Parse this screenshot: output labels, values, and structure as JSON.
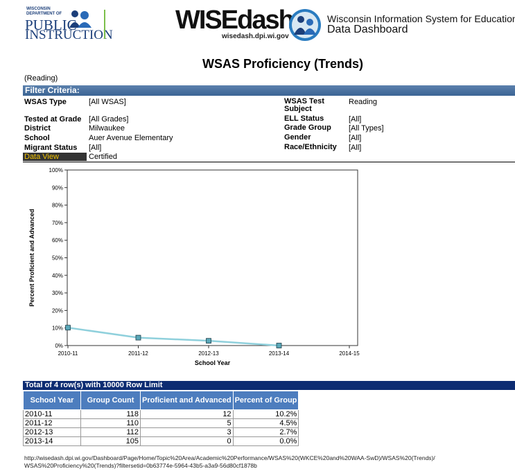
{
  "header": {
    "dpi_small": "WISCONSIN DEPARTMENT OF",
    "dpi_line1": "PUBLIC",
    "dpi_line2": "INSTRUCTION",
    "brand": "WISEdash",
    "brand_url": "wisedash.dpi.wi.gov",
    "tagline1": "Wisconsin Information System for Education",
    "tagline2": "Data Dashboard"
  },
  "title": "WSAS Proficiency (Trends)",
  "subtitle": "(Reading)",
  "filter_title": "Filter Criteria:",
  "filters": {
    "left": [
      {
        "label": "WSAS Type",
        "value": "[All WSAS]"
      },
      {
        "label": "Tested at Grade",
        "value": "[All Grades]"
      },
      {
        "label": "District",
        "value": "Milwaukee"
      },
      {
        "label": "School",
        "value": "Auer Avenue Elementary"
      },
      {
        "label": "Migrant Status",
        "value": "[All]"
      },
      {
        "label": "Data View",
        "value": "Certified"
      }
    ],
    "right": [
      {
        "label": "WSAS Test Subject",
        "value": "Reading"
      },
      {
        "label": "ELL Status",
        "value": "[All]"
      },
      {
        "label": "Grade Group",
        "value": "[All Types]"
      },
      {
        "label": "Gender",
        "value": "[All]"
      },
      {
        "label": "Race/Ethnicity",
        "value": "[All]"
      }
    ]
  },
  "chart_data": {
    "type": "line",
    "x_label": "School Year",
    "y_label": "Percent Proficient and Advanced",
    "categories": [
      "2010-11",
      "2011-12",
      "2012-13",
      "2013-14",
      "2014-15"
    ],
    "values": [
      10.2,
      4.5,
      2.7,
      0.0,
      null
    ],
    "color": "#8fd0dc",
    "marker_color": "#5aa7b8",
    "ylim": [
      0,
      100
    ],
    "yticks": [
      {
        "value": 0,
        "label": "0%"
      },
      {
        "value": 10,
        "label": "10%"
      },
      {
        "value": 20,
        "label": "20%"
      },
      {
        "value": 30,
        "label": "30%"
      },
      {
        "value": 40,
        "label": "40%"
      },
      {
        "value": 50,
        "label": "50%"
      },
      {
        "value": 60,
        "label": "60%"
      },
      {
        "value": 70,
        "label": "70%"
      },
      {
        "value": 80,
        "label": "80%"
      },
      {
        "value": 90,
        "label": "90%"
      },
      {
        "value": 100,
        "label": "100%"
      }
    ]
  },
  "table": {
    "caption": "Total of 4 row(s) with 10000 Row Limit",
    "headers": [
      "School Year",
      "Group Count",
      "Proficient and Advanced",
      "Percent of Group"
    ],
    "rows": [
      [
        "2010-11",
        118,
        12,
        "10.2%"
      ],
      [
        "2011-12",
        110,
        5,
        "4.5%"
      ],
      [
        "2012-13",
        112,
        3,
        "2.7%"
      ],
      [
        "2013-14",
        105,
        0,
        "0.0%"
      ]
    ]
  },
  "footer_url": "http://wisedash.dpi.wi.gov/Dashboard/Page/Home/Topic%20Area/Academic%20Performance/WSAS%20(WKCE%20and%20WAA-SwD)/WSAS%20(Trends)/WSAS%20Proficiency%20(Trends)?filtersetid=0b63774e-5964-43b5-a3a9-56d80cf1878b"
}
